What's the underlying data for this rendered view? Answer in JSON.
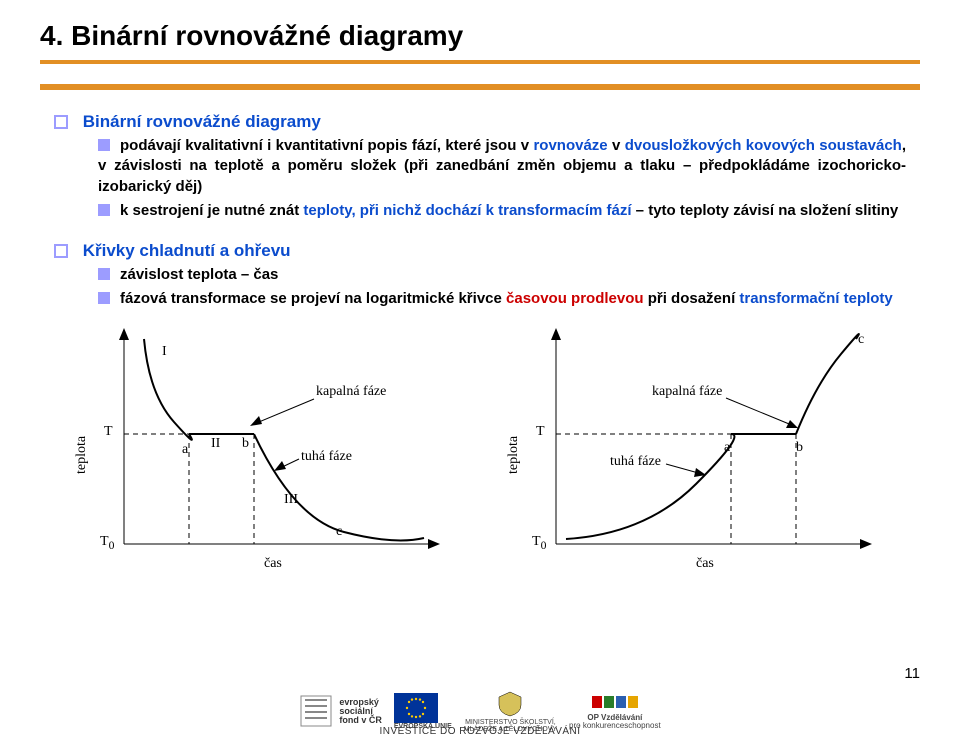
{
  "title": "4. Binární rovnovážné diagramy",
  "section1": {
    "heading": "Binární rovnovážné diagramy",
    "items": [
      {
        "parts": [
          {
            "t": "podávají kvalitativní i kvantitativní popis fází, které jsou v "
          },
          {
            "t": "rovnováze",
            "cls": "blue"
          },
          {
            "t": " v "
          },
          {
            "t": "dvousložkových kovových soustavách",
            "cls": "blue"
          },
          {
            "t": ", v závislosti na teplotě a poměru složek (při zanedbání změn objemu a tlaku – předpokládáme izochoricko-izobarický děj)"
          }
        ]
      },
      {
        "parts": [
          {
            "t": "k sestrojení je nutné znát "
          },
          {
            "t": "teploty, při nichž dochází k transformacím fází",
            "cls": "blue"
          },
          {
            "t": " – tyto teploty závisí na složení slitiny"
          }
        ]
      }
    ]
  },
  "section2": {
    "heading": "Křivky chladnutí a ohřevu",
    "items": [
      {
        "parts": [
          {
            "t": "závislost teplota – čas"
          }
        ]
      },
      {
        "parts": [
          {
            "t": "fázová transformace se projeví na logaritmické křivce "
          },
          {
            "t": "časovou prodlevou",
            "cls": "red"
          },
          {
            "t": " při dosažení "
          },
          {
            "t": "transformační teploty",
            "cls": "blue"
          }
        ]
      }
    ]
  },
  "chart_left": {
    "ylabel": "teplota",
    "xlabel": "čas",
    "T_label": "T",
    "T0_label": "T",
    "T0_sub": "0",
    "roman": {
      "I": "I",
      "II": "II",
      "III": "III"
    },
    "pts": {
      "a": "a",
      "b": "b",
      "c": "c"
    },
    "kapalna": "kapalná fáze",
    "tuha": "tuhá fáze",
    "color": "#000000"
  },
  "chart_right": {
    "ylabel": "teplota",
    "xlabel": "čas",
    "T_label": "T",
    "T0_label": "T",
    "T0_sub": "0",
    "pts": {
      "a": "a",
      "b": "b",
      "c": "c"
    },
    "kapalna": "kapalná fáze",
    "tuha": "tuhá fáze",
    "color": "#000000"
  },
  "page_number": "11",
  "footer": {
    "esf_lines": [
      "evropský",
      "sociální",
      "fond v ČR"
    ],
    "eu_label": "EVROPSKÁ UNIE",
    "ministry": "MINISTERSTVO ŠKOLSTVÍ,",
    "ministry2": "MLÁDEŽE A TĚLOVÝCHOVY",
    "op_label1": "OP Vzdělávání",
    "op_label2": "pro konkurenceschopnost",
    "invest": "INVESTICE DO ROZVOJE VZDĚLÁVÁNÍ"
  }
}
